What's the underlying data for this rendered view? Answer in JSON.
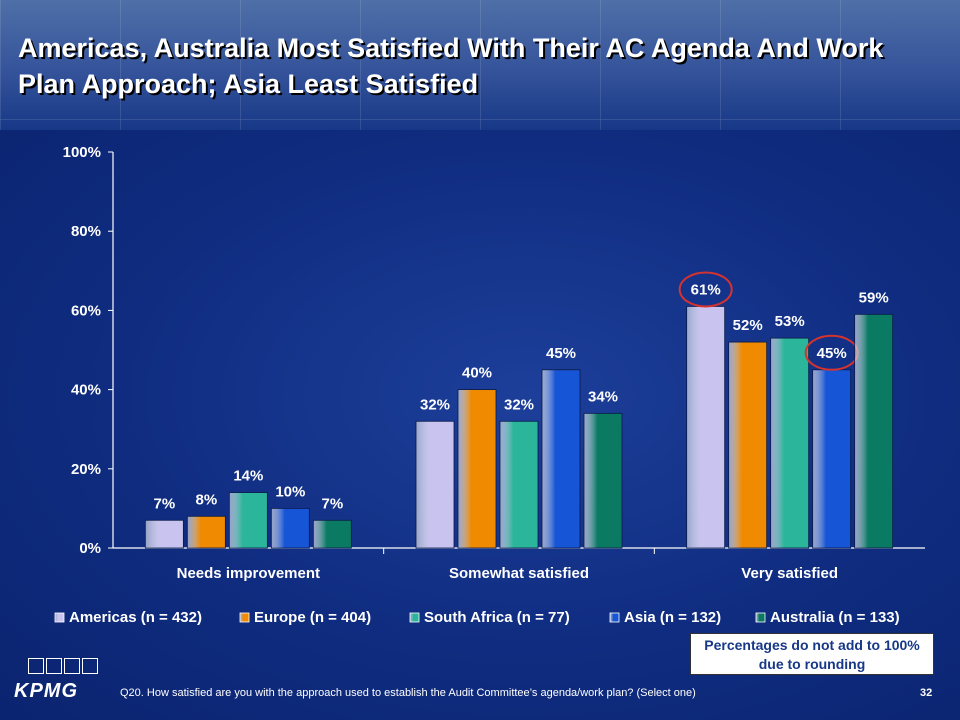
{
  "title": "Americas, Australia Most Satisfied With Their AC Agenda And Work Plan Approach; Asia Least Satisfied",
  "footnote": "Q20. How satisfied are you with the approach used to establish the Audit Committee’s agenda/work plan? (Select one)",
  "page_number": "32",
  "note": "Percentages do not add to 100% due to rounding",
  "logo_text": "KPMG",
  "colors": {
    "americas": "#c8c4ef",
    "europe": "#f08a00",
    "south_africa": "#2bb59a",
    "asia": "#1655d6",
    "australia": "#0a7a62",
    "highlight_circle": "#d6332f"
  },
  "chart_data": {
    "type": "bar",
    "categories": [
      "Needs improvement",
      "Somewhat satisfied",
      "Very satisfied"
    ],
    "ylim": [
      0,
      100
    ],
    "yticks": [
      "0%",
      "20%",
      "40%",
      "60%",
      "80%",
      "100%"
    ],
    "series": [
      {
        "name": "Americas (n = 432)",
        "values": [
          7,
          32,
          61
        ],
        "labels": [
          "7%",
          "32%",
          "61%"
        ],
        "color": "#c8c4ef"
      },
      {
        "name": "Europe (n = 404)",
        "values": [
          8,
          40,
          52
        ],
        "labels": [
          "8%",
          "40%",
          "52%"
        ],
        "color": "#f08a00"
      },
      {
        "name": "South Africa (n = 77)",
        "values": [
          14,
          32,
          53
        ],
        "labels": [
          "14%",
          "32%",
          "53%"
        ],
        "color": "#2bb59a"
      },
      {
        "name": "Asia (n = 132)",
        "values": [
          10,
          45,
          45
        ],
        "labels": [
          "10%",
          "45%",
          "45%"
        ],
        "color": "#1655d6"
      },
      {
        "name": "Australia (n = 133)",
        "values": [
          7,
          34,
          59
        ],
        "labels": [
          "7%",
          "34%",
          "59%"
        ],
        "color": "#0a7a62"
      }
    ],
    "highlighted": [
      {
        "series": "Americas (n = 432)",
        "category": "Very satisfied"
      },
      {
        "series": "Asia (n = 132)",
        "category": "Very satisfied"
      }
    ],
    "legend": "bottom",
    "grid": false
  }
}
